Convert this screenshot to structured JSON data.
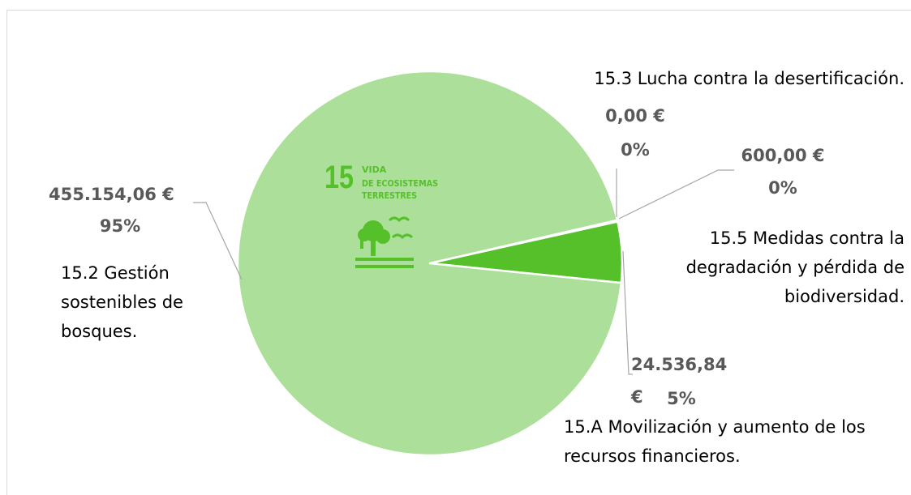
{
  "chart_data": {
    "type": "pie",
    "categories": [
      "15.3 Lucha contra la desertificación.",
      "15.5 Medidas contra la degradación y pérdida de biodiversidad.",
      "15.A Movilización y aumento de los recursos financieros.",
      "15.2 Gestión sostenibles de bosques."
    ],
    "values": [
      0,
      600,
      24536.84,
      455154.06
    ],
    "value_labels": [
      "0,00 €",
      "600,00 €",
      "24.536,84 €",
      "455.154,06 €"
    ],
    "percent_labels": [
      "0%",
      "0%",
      "5%",
      "95%"
    ],
    "colors": [
      "#acdf99",
      "#acdf99",
      "#56c02b",
      "#acdf99"
    ],
    "icon": {
      "number": "15",
      "lines": [
        "VIDA",
        "DE ECOSISTEMAS",
        "TERRESTRES"
      ],
      "color": "#56c02b"
    }
  }
}
